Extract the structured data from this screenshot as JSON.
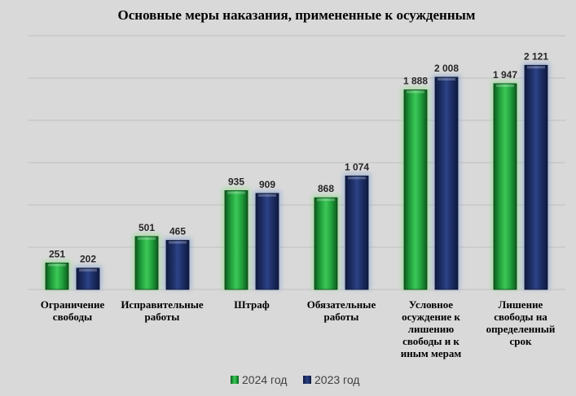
{
  "chart_data": {
    "type": "bar",
    "title": "Основные меры наказания, примененные к осужденным",
    "categories": [
      [
        "Ограничение",
        "свободы"
      ],
      [
        "Исправительные",
        "работы"
      ],
      [
        "Штраф"
      ],
      [
        "Обязательные",
        "работы"
      ],
      [
        "Условное",
        "осуждение к",
        "лишению",
        "свободы и к",
        "иным мерам"
      ],
      [
        "Лишение",
        "свободы на",
        "определенный",
        "срок"
      ]
    ],
    "series": [
      {
        "name": "2024 год",
        "values": [
          251,
          501,
          935,
          868,
          1888,
          1947
        ],
        "labels": [
          "251",
          "501",
          "935",
          "868",
          "1 888",
          "1 947"
        ]
      },
      {
        "name": "2023 год",
        "values": [
          202,
          465,
          909,
          1074,
          2008,
          2121
        ],
        "labels": [
          "202",
          "465",
          "909",
          "1 074",
          "2 008",
          "2 121"
        ]
      }
    ],
    "ylim": [
      0,
      2400
    ],
    "grid": true,
    "legend": "bottom",
    "colors": {
      "2024 год": "#1f9c3a",
      "2023 год": "#1f3068",
      "background": "#d9d9d9"
    }
  }
}
